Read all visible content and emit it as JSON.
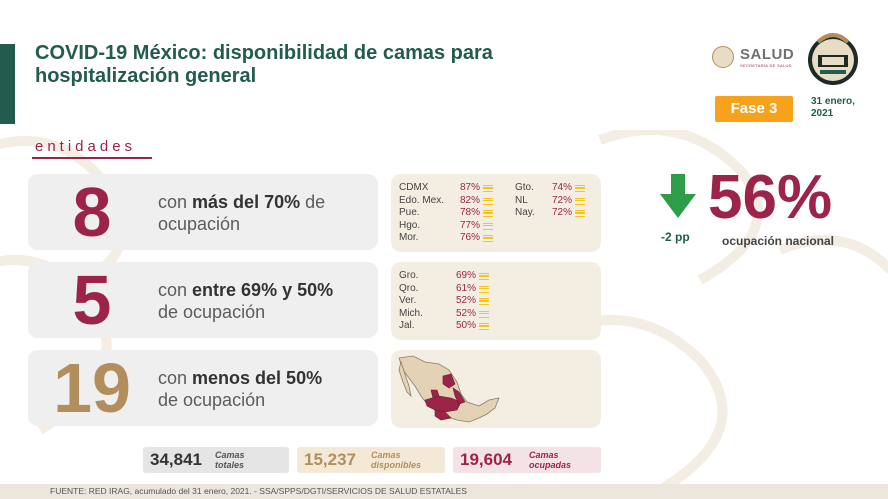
{
  "header": {
    "title": "COVID-19 México: disponibilidad de camas para hospitalización general",
    "logo_salud": "SALUD",
    "logo_salud_sub": "SECRETARÍA DE SALUD",
    "phase": "Fase 3",
    "date_line1": "31 enero,",
    "date_line2": "2021"
  },
  "section_label": "entidades",
  "groups": [
    {
      "count": "8",
      "color": "#9d2449",
      "desc_bold": "más del 70%",
      "desc_pre": "con ",
      "desc_post": " de",
      "desc_line2": "ocupación"
    },
    {
      "count": "5",
      "color": "#9d2449",
      "desc_bold": "entre 69% y 50%",
      "desc_pre": "con ",
      "desc_post": "",
      "desc_line2": "de ocupación"
    },
    {
      "count": "19",
      "color": "#b38e5d",
      "desc_bold": "menos del 50%",
      "desc_pre": "con ",
      "desc_post": "",
      "desc_line2": "de ocupación"
    }
  ],
  "high_states_col1": [
    {
      "state": "CDMX",
      "pct": "87%"
    },
    {
      "state": "Edo. Mex.",
      "pct": "82%"
    },
    {
      "state": "Pue.",
      "pct": "78%"
    },
    {
      "state": "Hgo.",
      "pct": "77%"
    },
    {
      "state": "Mor.",
      "pct": "76%"
    }
  ],
  "high_states_col2": [
    {
      "state": "Gto.",
      "pct": "74%"
    },
    {
      "state": "NL",
      "pct": "72%"
    },
    {
      "state": "Nay.",
      "pct": "72%"
    }
  ],
  "mid_states": [
    {
      "state": "Gro.",
      "pct": "69%"
    },
    {
      "state": "Qro.",
      "pct": "61%"
    },
    {
      "state": "Ver.",
      "pct": "52%"
    },
    {
      "state": "Mich.",
      "pct": "52%"
    },
    {
      "state": "Jal.",
      "pct": "50%"
    }
  ],
  "national": {
    "change": "-2 pp",
    "value": "56%",
    "label": "ocupación nacional"
  },
  "totals": [
    {
      "number": "34,841",
      "label1": "Camas",
      "label2": "totales",
      "bg": "#e5e5e5",
      "color": "#333333"
    },
    {
      "number": "15,237",
      "label1": "Camas",
      "label2": "disponibles",
      "bg": "#f4e9d6",
      "color": "#b38e5d"
    },
    {
      "number": "19,604",
      "label1": "Camas",
      "label2": "ocupadas",
      "bg": "#f3e3e7",
      "color": "#9d2449"
    }
  ],
  "footer": "FUENTE: RED IRAG, acumulado del 31 enero, 2021.  -  SSA/SPPS/DGTI/SERVICIOS DE SALUD ESTATALES",
  "colors": {
    "green": "#235b4e",
    "wine": "#9d2449",
    "gold": "#b38e5d",
    "orange": "#f7a21b"
  }
}
